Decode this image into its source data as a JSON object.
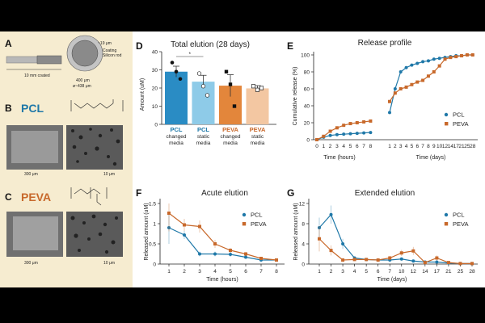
{
  "colors": {
    "pcl": "#1f78a8",
    "peva": "#c8692b",
    "bar_pcl_changed": "#2a8cc4",
    "bar_pcl_static": "#8ecbe8",
    "bar_peva_changed": "#e3863b",
    "bar_peva_static": "#f3c7a2",
    "bg": "#f6ecd0"
  },
  "panels": {
    "a": {
      "label": "A",
      "rod_length": "10 mm coated",
      "dims": [
        "~19 μm",
        "Coating",
        "Silicon rod",
        "400 μm",
        "ø~438 μm"
      ]
    },
    "b": {
      "label": "B",
      "polymer": "PCL",
      "scales": [
        "300 μm",
        "10 μm"
      ]
    },
    "c": {
      "label": "C",
      "polymer": "PEVA",
      "scales": [
        "300 μm",
        "10 μm"
      ]
    },
    "f_label": "F",
    "g_label": "G"
  },
  "chart_data": [
    {
      "id": "D",
      "label": "D",
      "type": "bar",
      "title": "Total elution (28 days)",
      "ylabel": "Amount (uM)",
      "ylim": [
        0,
        40
      ],
      "yticks": [
        0,
        10,
        20,
        30,
        40
      ],
      "categories": [
        [
          "PCL",
          "changed",
          "media"
        ],
        [
          "PCL",
          "static",
          "media"
        ],
        [
          "PEVA",
          "changed",
          "media"
        ],
        [
          "PEVA",
          "static",
          "media"
        ]
      ],
      "values": [
        29,
        23.5,
        21.3,
        19.8
      ],
      "errors": [
        3,
        3.5,
        6,
        1.5
      ],
      "points": [
        [
          34,
          29,
          25
        ],
        [
          28,
          21,
          16
        ],
        [
          29,
          22,
          10
        ],
        [
          21,
          19,
          20
        ]
      ],
      "annotation": "*"
    },
    {
      "id": "E",
      "label": "E",
      "type": "line",
      "title": "Release profile",
      "ylabel": "Cumulative release (%)",
      "ylim": [
        0,
        100
      ],
      "yticks": [
        0,
        20,
        40,
        60,
        80,
        100
      ],
      "x_hours": [
        0,
        1,
        2,
        3,
        4,
        5,
        6,
        7,
        8
      ],
      "x_days": [
        1,
        2,
        3,
        4,
        5,
        6,
        7,
        8,
        9,
        10,
        12,
        14,
        17,
        21,
        25,
        28
      ],
      "xlabel_hours": "Time (hours)",
      "xlabel_days": "Time (days)",
      "series": [
        {
          "name": "PCL",
          "hours": [
            0,
            3,
            5,
            6,
            6.5,
            7,
            7.5,
            8,
            8.5
          ],
          "days": [
            32,
            60,
            80,
            85,
            88,
            90,
            92,
            93,
            95,
            96,
            97,
            98,
            99,
            99,
            100,
            100
          ]
        },
        {
          "name": "PEVA",
          "hours": [
            0,
            4,
            10,
            14,
            17,
            19,
            20,
            21,
            22
          ],
          "days": [
            45,
            55,
            60,
            62,
            65,
            68,
            70,
            75,
            80,
            87,
            95,
            97,
            98,
            99,
            100,
            100
          ]
        }
      ]
    },
    {
      "id": "F",
      "label": "F",
      "type": "line",
      "title": "Acute elution",
      "xlabel": "Time (hours)",
      "ylabel": "Released amount (uM)",
      "x": [
        1,
        2,
        3,
        4,
        5,
        6,
        7,
        8
      ],
      "ylim": [
        0,
        1.5
      ],
      "yticks": [
        0,
        0.5,
        1.0,
        1.5
      ],
      "series": [
        {
          "name": "PCL",
          "values": [
            0.9,
            0.72,
            0.25,
            0.25,
            0.24,
            0.17,
            0.1,
            0.1
          ],
          "errors": [
            0.4,
            0.1,
            0.06,
            0.06,
            0.06,
            0.04,
            0.04,
            0.04
          ]
        },
        {
          "name": "PEVA",
          "values": [
            1.26,
            0.97,
            0.93,
            0.5,
            0.34,
            0.25,
            0.14,
            0.1
          ],
          "errors": [
            0.45,
            0.15,
            0.15,
            0.1,
            0.06,
            0.05,
            0.04,
            0.04
          ]
        }
      ]
    },
    {
      "id": "G",
      "label": "G",
      "type": "line",
      "title": "Extended elution",
      "xlabel": "Time (days)",
      "ylabel": "Released amount (uM)",
      "x": [
        1,
        2,
        3,
        4,
        5,
        6,
        7,
        10,
        12,
        14,
        17,
        21,
        25,
        28
      ],
      "ylim": [
        0,
        12
      ],
      "yticks": [
        0,
        4,
        8,
        12
      ],
      "series": [
        {
          "name": "PCL",
          "values": [
            7.2,
            9.8,
            4.0,
            1.2,
            0.9,
            0.8,
            0.8,
            1.0,
            0.6,
            0.4,
            0.4,
            0.2,
            0.1,
            0.1
          ],
          "errors": [
            2.0,
            1.8,
            1.0,
            0.3,
            0.2,
            0.2,
            0.2,
            0.3,
            0.2,
            0.2,
            0.2,
            0.1,
            0.1,
            0.1
          ]
        },
        {
          "name": "PEVA",
          "values": [
            5.0,
            2.7,
            0.8,
            0.9,
            0.9,
            0.8,
            1.2,
            2.2,
            2.6,
            0.3,
            1.2,
            0.3,
            0.1,
            0.1
          ],
          "errors": [
            2.5,
            1.0,
            0.3,
            0.3,
            0.3,
            0.3,
            0.4,
            0.6,
            0.8,
            0.2,
            0.5,
            0.2,
            0.1,
            0.1
          ]
        }
      ]
    }
  ]
}
